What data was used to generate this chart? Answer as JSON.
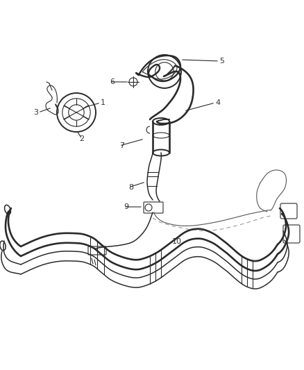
{
  "background_color": "#ffffff",
  "line_color": "#2a2a2a",
  "label_color": "#333333",
  "fig_width": 4.38,
  "fig_height": 5.33,
  "dpi": 100,
  "lw": 1.4,
  "thin_lw": 0.8,
  "med_lw": 1.1
}
